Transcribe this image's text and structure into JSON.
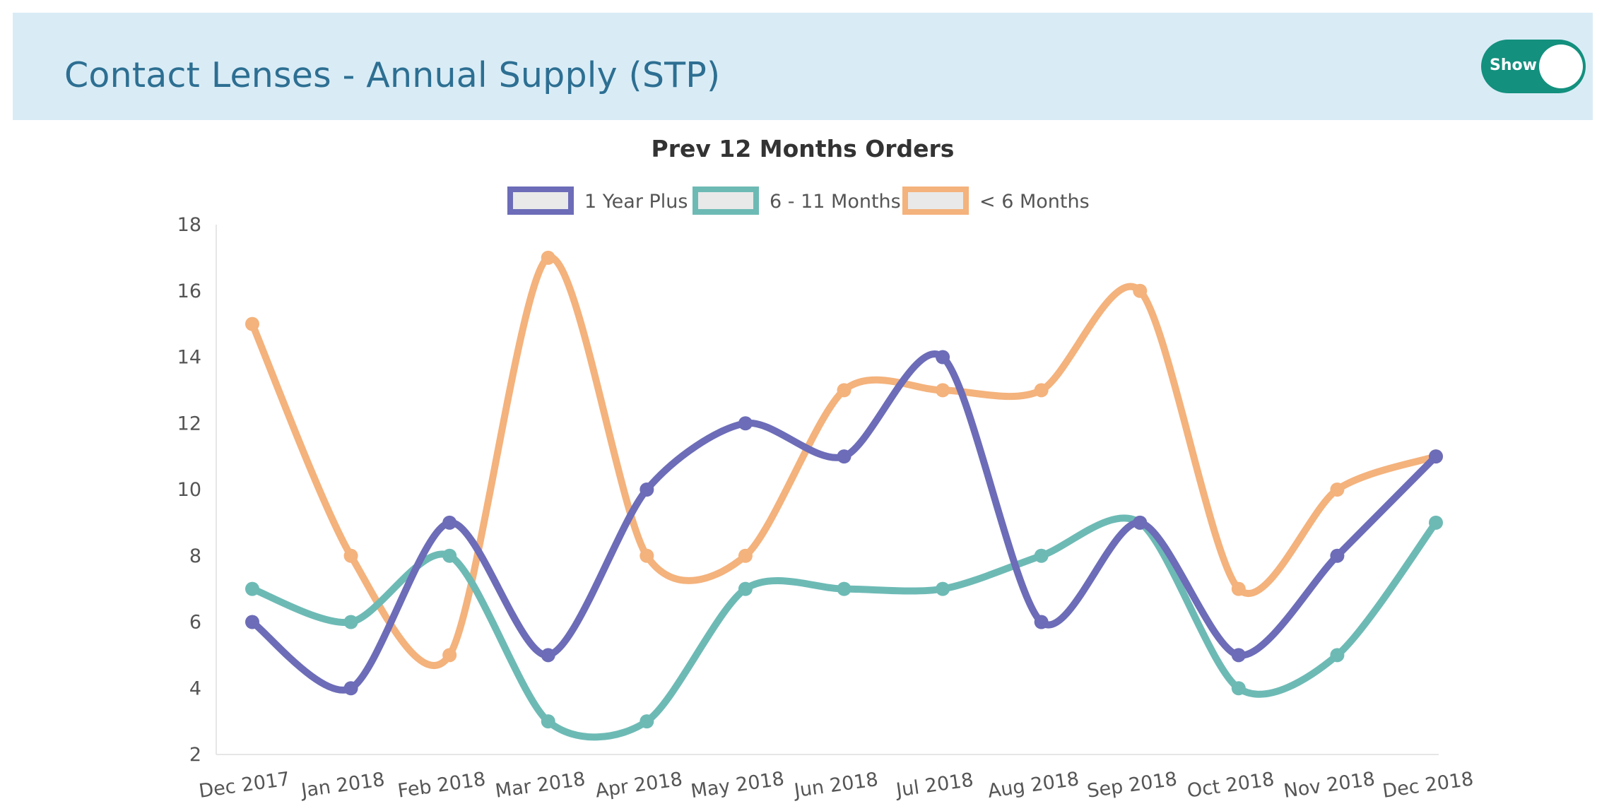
{
  "header": {
    "title": "Contact Lenses - Annual Supply (STP)",
    "toggle_label": "Show",
    "background_color": "#d9ecf6",
    "title_color": "#2d6f92",
    "toggle_color": "#13907e",
    "toggle_state": "on"
  },
  "chart_data": {
    "type": "line",
    "title": "Prev 12 Months Orders",
    "xlabel": "",
    "ylabel": "",
    "categories": [
      "Dec 2017",
      "Jan 2018",
      "Feb 2018",
      "Mar 2018",
      "Apr 2018",
      "May 2018",
      "Jun 2018",
      "Jul 2018",
      "Aug 2018",
      "Sep 2018",
      "Oct 2018",
      "Nov 2018",
      "Dec 2018"
    ],
    "ylim": [
      2,
      18
    ],
    "yticks": [
      2,
      4,
      6,
      8,
      10,
      12,
      14,
      16,
      18
    ],
    "grid": false,
    "legend_position": "top",
    "series": [
      {
        "name": "1 Year Plus",
        "color": "#6c6cb8",
        "values": [
          6,
          4,
          9,
          5,
          10,
          12,
          11,
          14,
          6,
          9,
          5,
          8,
          11
        ]
      },
      {
        "name": "6 - 11 Months",
        "color": "#6dbab5",
        "values": [
          7,
          6,
          8,
          3,
          3,
          7,
          7,
          7,
          8,
          9,
          4,
          5,
          9
        ]
      },
      {
        "name": "< 6 Months",
        "color": "#f4b27c",
        "values": [
          15,
          8,
          5,
          17,
          8,
          8,
          13,
          13,
          13,
          16,
          7,
          10,
          11
        ]
      }
    ]
  }
}
